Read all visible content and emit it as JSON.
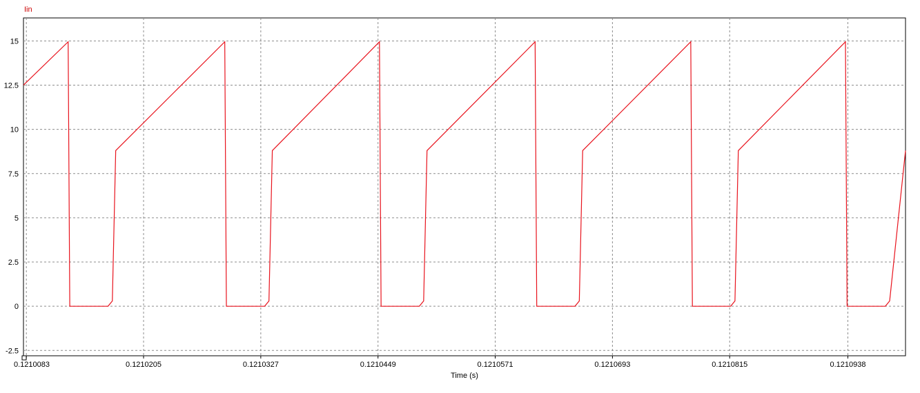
{
  "chart_data": {
    "type": "line",
    "series_name": "Iin",
    "xlabel": "Time (s)",
    "ylabel": "",
    "title": "",
    "xlim": [
      0.121008,
      0.1210998
    ],
    "ylim": [
      -2.8,
      16.3
    ],
    "x_ticks": [
      {
        "value": 0.1210083,
        "label": "0.1210083"
      },
      {
        "value": 0.1210205,
        "label": "0.1210205"
      },
      {
        "value": 0.1210327,
        "label": "0.1210327"
      },
      {
        "value": 0.1210449,
        "label": "0.1210449"
      },
      {
        "value": 0.1210571,
        "label": "0.1210571"
      },
      {
        "value": 0.1210693,
        "label": "0.1210693"
      },
      {
        "value": 0.1210815,
        "label": "0.1210815"
      },
      {
        "value": 0.1210938,
        "label": "0.1210938"
      }
    ],
    "y_ticks": [
      {
        "value": -2.5,
        "label": "-2.5"
      },
      {
        "value": 0,
        "label": "0"
      },
      {
        "value": 2.5,
        "label": "2.5"
      },
      {
        "value": 5,
        "label": "5"
      },
      {
        "value": 7.5,
        "label": "7.5"
      },
      {
        "value": 10,
        "label": "10"
      },
      {
        "value": 12.5,
        "label": "12.5"
      },
      {
        "value": 15,
        "label": "15"
      }
    ],
    "grid": true,
    "colors": {
      "series": "#e8121c",
      "grid": "#8c8c8c",
      "axes": "#000000"
    },
    "series": [
      {
        "name": "Iin",
        "points": [
          [
            0.121008,
            12.5
          ],
          [
            0.12101265,
            14.95
          ],
          [
            0.12101282,
            0
          ],
          [
            0.1210168,
            0
          ],
          [
            0.12101725,
            0.3
          ],
          [
            0.1210176,
            8.8
          ],
          [
            0.12102895,
            14.95
          ],
          [
            0.12102912,
            0
          ],
          [
            0.1210331,
            0
          ],
          [
            0.12103355,
            0.3
          ],
          [
            0.1210339,
            8.8
          ],
          [
            0.12104505,
            14.95
          ],
          [
            0.12104522,
            0
          ],
          [
            0.1210492,
            0
          ],
          [
            0.12104965,
            0.3
          ],
          [
            0.12105,
            8.8
          ],
          [
            0.12106125,
            14.95
          ],
          [
            0.12106142,
            0
          ],
          [
            0.1210654,
            0
          ],
          [
            0.12106585,
            0.3
          ],
          [
            0.1210662,
            8.8
          ],
          [
            0.12107745,
            14.95
          ],
          [
            0.12107762,
            0
          ],
          [
            0.1210816,
            0
          ],
          [
            0.12108205,
            0.3
          ],
          [
            0.1210824,
            8.8
          ],
          [
            0.12109355,
            14.95
          ],
          [
            0.12109372,
            0
          ],
          [
            0.1210977,
            0
          ],
          [
            0.12109815,
            0.3
          ],
          [
            0.1210998,
            8.8
          ]
        ]
      }
    ]
  }
}
